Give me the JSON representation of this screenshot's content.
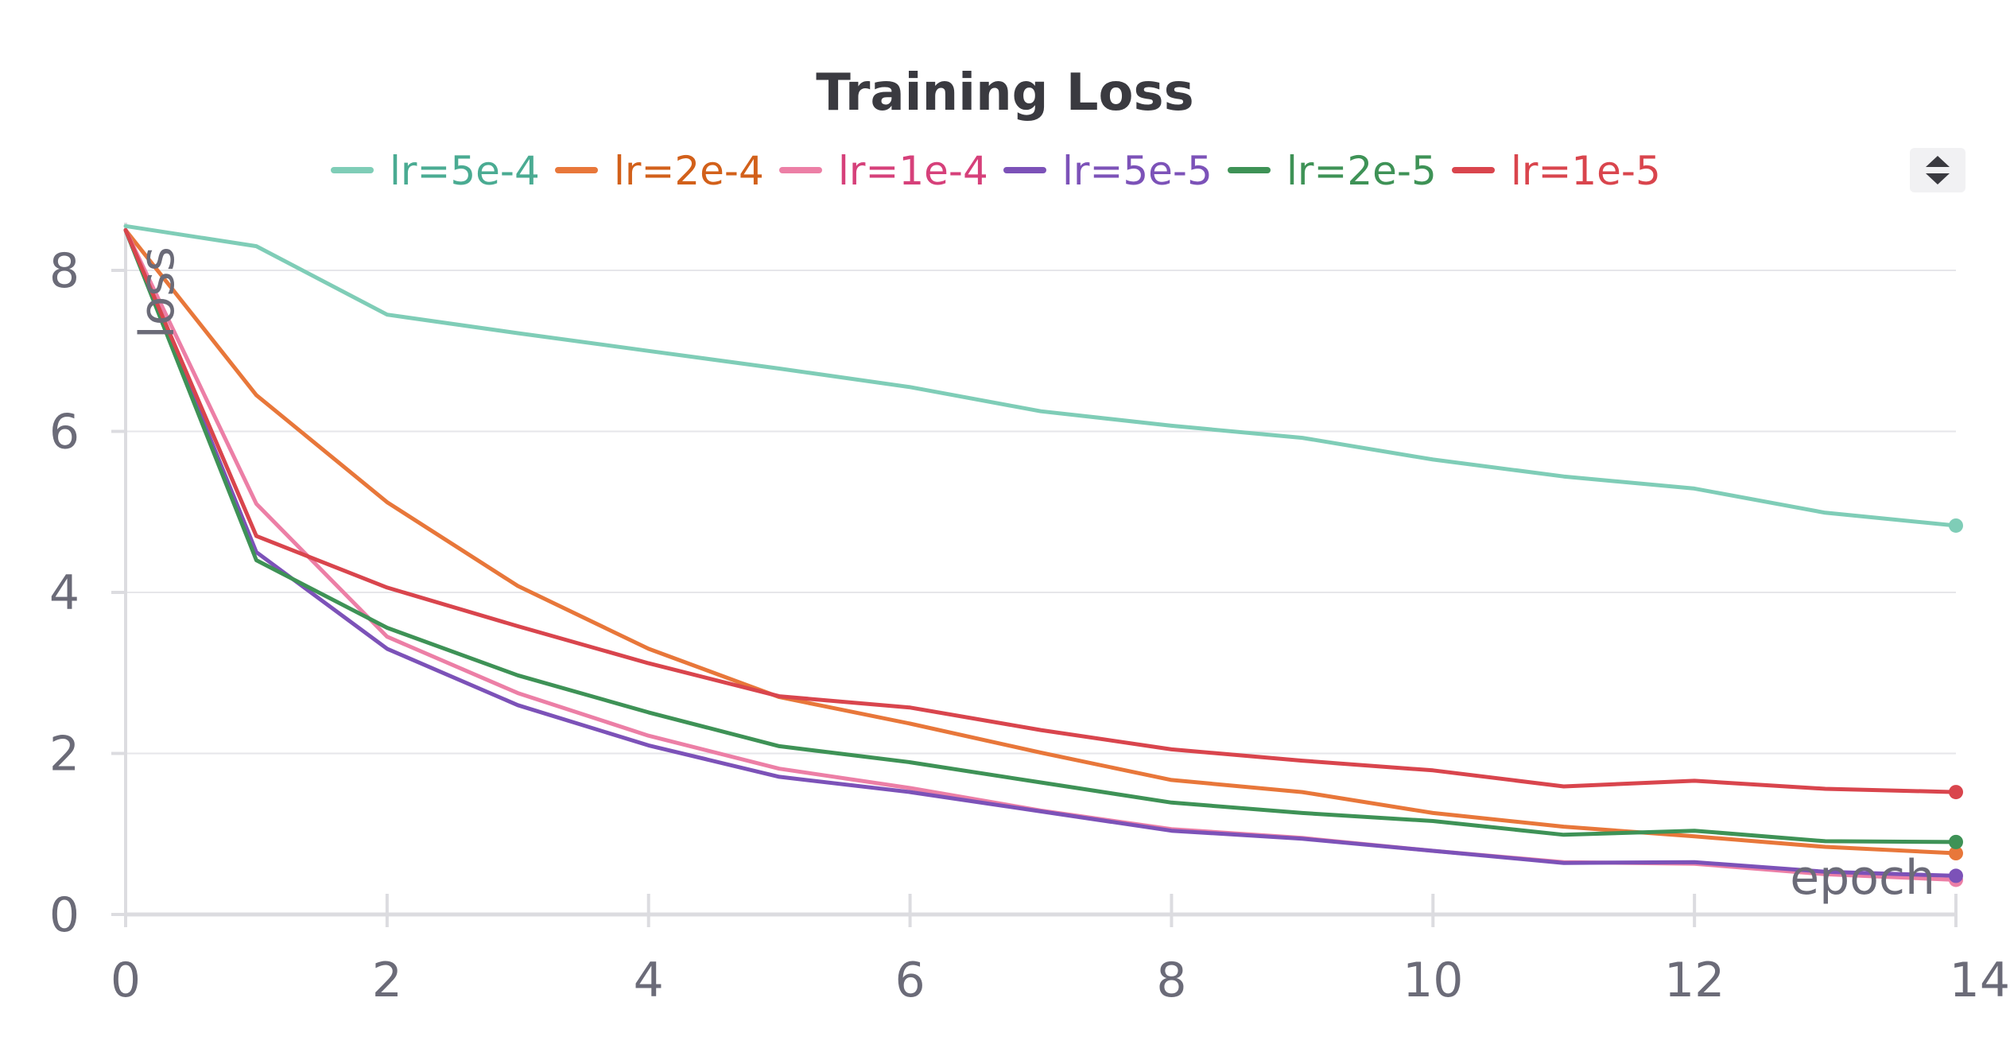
{
  "chart_data": {
    "type": "line",
    "title": "Training Loss",
    "xlabel": "epoch",
    "ylabel": "loss",
    "xlim": [
      0,
      14
    ],
    "ylim": [
      0,
      8.5
    ],
    "x_ticks": [
      0,
      2,
      4,
      6,
      8,
      10,
      12,
      14
    ],
    "y_ticks": [
      0,
      2,
      4,
      6,
      8
    ],
    "grid": true,
    "legend_position": "top",
    "x": [
      0,
      1,
      2,
      3,
      4,
      5,
      6,
      7,
      8,
      9,
      10,
      11,
      12,
      13,
      14
    ],
    "series": [
      {
        "name": "lr=5e-4",
        "color": "#7fcdb7",
        "text_color": "#4aab92",
        "values": [
          8.55,
          8.3,
          7.45,
          7.22,
          7.0,
          6.78,
          6.55,
          6.25,
          6.07,
          5.92,
          5.65,
          5.44,
          5.29,
          4.99,
          4.83
        ]
      },
      {
        "name": "lr=2e-4",
        "color": "#e8773a",
        "text_color": "#d2601a",
        "values": [
          8.5,
          6.45,
          5.12,
          4.08,
          3.3,
          2.7,
          2.37,
          2.01,
          1.67,
          1.52,
          1.26,
          1.09,
          0.97,
          0.84,
          0.76
        ]
      },
      {
        "name": "lr=1e-4",
        "color": "#ec7fa6",
        "text_color": "#d6407a",
        "values": [
          8.5,
          5.1,
          3.45,
          2.75,
          2.22,
          1.81,
          1.57,
          1.29,
          1.06,
          0.95,
          0.79,
          0.65,
          0.63,
          0.5,
          0.43
        ]
      },
      {
        "name": "lr=5e-5",
        "color": "#7c52b8",
        "text_color": "#7c52b8",
        "values": [
          8.5,
          4.5,
          3.3,
          2.6,
          2.1,
          1.71,
          1.52,
          1.28,
          1.04,
          0.94,
          0.79,
          0.64,
          0.65,
          0.53,
          0.48
        ]
      },
      {
        "name": "lr=2e-5",
        "color": "#3e9256",
        "text_color": "#3e9256",
        "values": [
          8.5,
          4.4,
          3.56,
          2.97,
          2.51,
          2.09,
          1.89,
          1.64,
          1.39,
          1.26,
          1.16,
          0.99,
          1.04,
          0.91,
          0.9
        ]
      },
      {
        "name": "lr=1e-5",
        "color": "#d9454d",
        "text_color": "#d9454d",
        "values": [
          8.5,
          4.7,
          4.06,
          3.58,
          3.12,
          2.71,
          2.57,
          2.29,
          2.05,
          1.91,
          1.79,
          1.59,
          1.66,
          1.56,
          1.52
        ]
      }
    ]
  },
  "icons": {
    "legend_scroll": "up-down-arrows-icon"
  }
}
